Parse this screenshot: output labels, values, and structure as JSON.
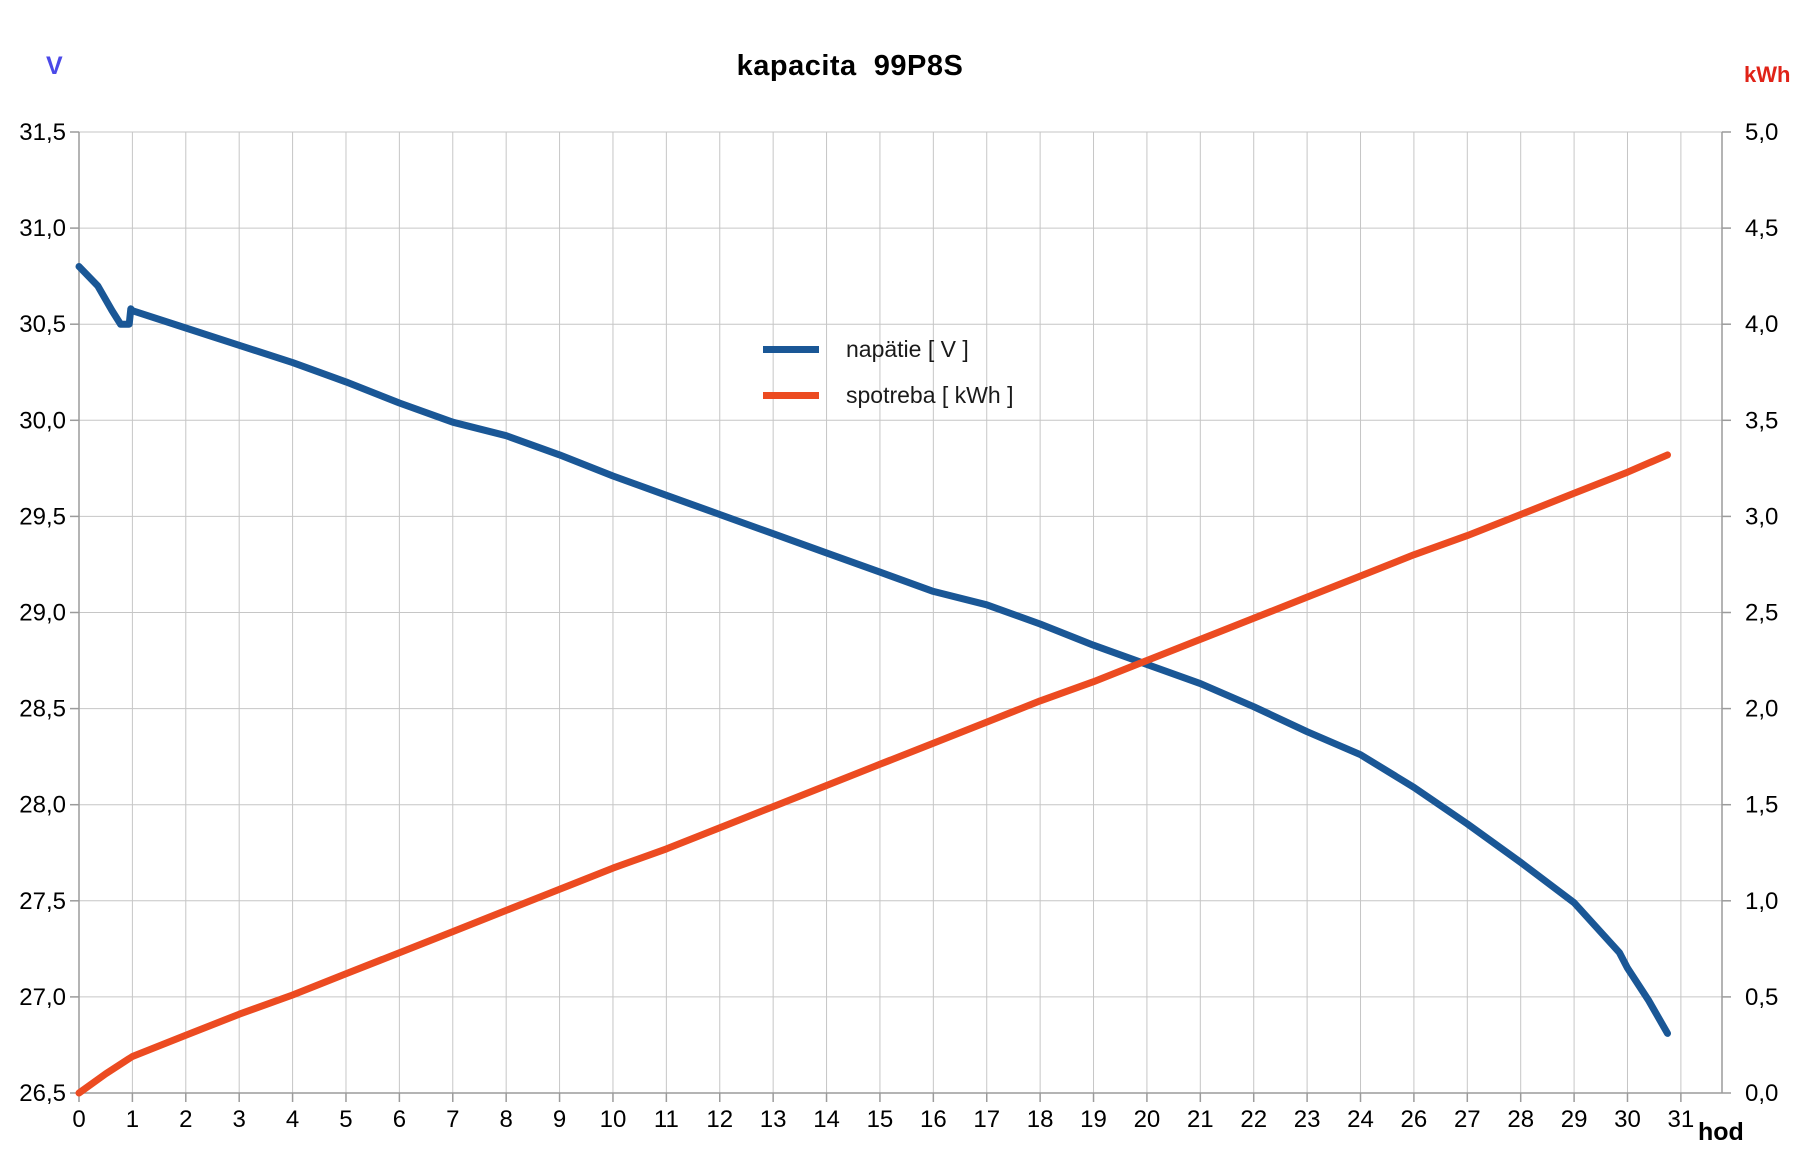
{
  "chart_data": {
    "type": "line",
    "title": "kapacita  99P8S",
    "x_axis": {
      "unit": "hod",
      "tick_labels": [
        "0",
        "1",
        "2",
        "3",
        "4",
        "5",
        "6",
        "7",
        "8",
        "9",
        "10",
        "11",
        "12",
        "13",
        "14",
        "15",
        "16",
        "17",
        "18",
        "19",
        "20",
        "21",
        "22",
        "23",
        "24",
        "26",
        "27",
        "28",
        "29",
        "30",
        "31"
      ],
      "note": "hour 25 label/sample is absent; categories are equally spaced"
    },
    "y_left": {
      "unit": "V",
      "unit_color": "#4b49e8",
      "min": 26.5,
      "max": 31.5,
      "step": 0.5,
      "tick_labels": [
        "31,5",
        "31,0",
        "30,5",
        "30,0",
        "29,5",
        "29,0",
        "28,5",
        "28,0",
        "27,5",
        "27,0",
        "26,5"
      ]
    },
    "y_right": {
      "unit": "kWh",
      "unit_color": "#e02318",
      "min": 0.0,
      "max": 5.0,
      "step": 0.5,
      "tick_labels": [
        "5,0",
        "4,5",
        "4,0",
        "3,5",
        "3,0",
        "2,5",
        "2,0",
        "1,5",
        "1,0",
        "0,5",
        "0,0"
      ]
    },
    "grid": {
      "gridline_color": "#c6c6c6",
      "axis_color": "#9b9b9b",
      "background": "#ffffff"
    },
    "legend": {
      "position": "inside-upper-middle"
    },
    "series": [
      {
        "name": "napätie [ V ]",
        "axis": "left",
        "color": "#1a5796",
        "stroke_width": 7,
        "points": [
          [
            0,
            30.8
          ],
          [
            0.35,
            30.7
          ],
          [
            0.62,
            30.57
          ],
          [
            0.78,
            30.5
          ],
          [
            0.94,
            30.5
          ],
          [
            0.97,
            30.58
          ],
          [
            1,
            30.57
          ],
          [
            2,
            30.48
          ],
          [
            3,
            30.39
          ],
          [
            4,
            30.3
          ],
          [
            5,
            30.2
          ],
          [
            6,
            30.09
          ],
          [
            7,
            29.99
          ],
          [
            8,
            29.92
          ],
          [
            9,
            29.82
          ],
          [
            10,
            29.71
          ],
          [
            11,
            29.61
          ],
          [
            12,
            29.51
          ],
          [
            13,
            29.41
          ],
          [
            14,
            29.31
          ],
          [
            15,
            29.21
          ],
          [
            16,
            29.11
          ],
          [
            17,
            29.04
          ],
          [
            18,
            28.94
          ],
          [
            19,
            28.83
          ],
          [
            20,
            28.73
          ],
          [
            21,
            28.63
          ],
          [
            22,
            28.51
          ],
          [
            23,
            28.38
          ],
          [
            24,
            28.26
          ],
          [
            26,
            28.09
          ],
          [
            27,
            27.9
          ],
          [
            28,
            27.7
          ],
          [
            29,
            27.49
          ],
          [
            29.85,
            27.23
          ],
          [
            30,
            27.15
          ],
          [
            30.4,
            26.98
          ],
          [
            30.75,
            26.81
          ]
        ]
      },
      {
        "name": "spotreba [ kWh ]",
        "axis": "right",
        "color": "#ec4b21",
        "stroke_width": 7,
        "points": [
          [
            0,
            0.0
          ],
          [
            0.5,
            0.1
          ],
          [
            1,
            0.19
          ],
          [
            2,
            0.3
          ],
          [
            3,
            0.41
          ],
          [
            4,
            0.51
          ],
          [
            5,
            0.62
          ],
          [
            6,
            0.73
          ],
          [
            7,
            0.84
          ],
          [
            8,
            0.95
          ],
          [
            9,
            1.06
          ],
          [
            10,
            1.17
          ],
          [
            11,
            1.27
          ],
          [
            12,
            1.38
          ],
          [
            13,
            1.49
          ],
          [
            14,
            1.6
          ],
          [
            15,
            1.71
          ],
          [
            16,
            1.82
          ],
          [
            17,
            1.93
          ],
          [
            18,
            2.04
          ],
          [
            19,
            2.14
          ],
          [
            20,
            2.25
          ],
          [
            21,
            2.36
          ],
          [
            22,
            2.47
          ],
          [
            23,
            2.58
          ],
          [
            24,
            2.69
          ],
          [
            26,
            2.8
          ],
          [
            27,
            2.9
          ],
          [
            28,
            3.01
          ],
          [
            29,
            3.12
          ],
          [
            30,
            3.23
          ],
          [
            30.75,
            3.32
          ]
        ]
      }
    ]
  }
}
